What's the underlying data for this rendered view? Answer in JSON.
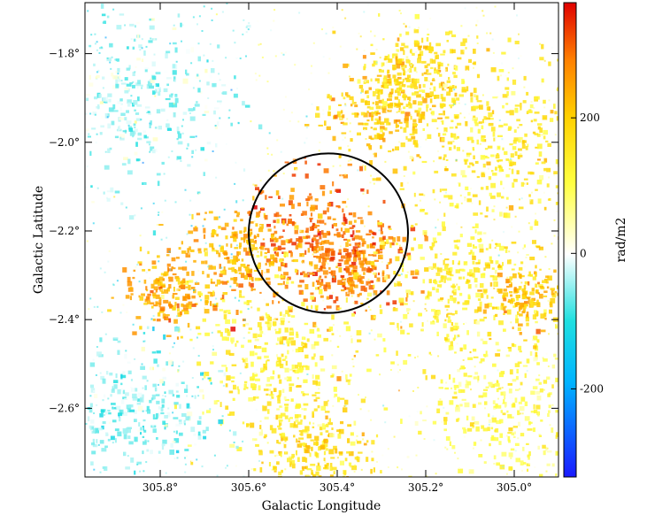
{
  "chart_data": {
    "type": "heatmap",
    "title": "",
    "xlabel": "Galactic Longitude",
    "ylabel": "Galactic Latitude",
    "xlim": [
      305.97,
      304.9
    ],
    "ylim": [
      -2.755,
      -1.685
    ],
    "x_ticks": [
      {
        "value": 305.8,
        "label": "305.8°"
      },
      {
        "value": 305.6,
        "label": "305.6°"
      },
      {
        "value": 305.4,
        "label": "305.4°"
      },
      {
        "value": 305.2,
        "label": "305.2°"
      },
      {
        "value": 305.0,
        "label": "305.0°"
      }
    ],
    "y_ticks": [
      {
        "value": -1.8,
        "label": "−1.8°"
      },
      {
        "value": -2.0,
        "label": "−2.0°"
      },
      {
        "value": -2.2,
        "label": "−2.2°"
      },
      {
        "value": -2.4,
        "label": "−2.4°"
      },
      {
        "value": -2.6,
        "label": "−2.6°"
      }
    ],
    "colorbar": {
      "label": "rad/m2",
      "range": [
        -330,
        370
      ],
      "ticks": [
        {
          "value": 200,
          "label": "200"
        },
        {
          "value": 0,
          "label": "0"
        },
        {
          "value": -200,
          "label": "-200"
        }
      ],
      "colors": [
        "#1a1aff",
        "#00c8e0",
        "#ffffff",
        "#ffff00",
        "#ffa000",
        "#ff3000",
        "#e00000"
      ]
    },
    "regions": [
      {
        "l": 305.45,
        "b": -2.22,
        "rm": 300,
        "spread": 0.085
      },
      {
        "l": 305.36,
        "b": -2.27,
        "rm": 280,
        "spread": 0.06
      },
      {
        "l": 305.62,
        "b": -2.26,
        "rm": 230,
        "spread": 0.07
      },
      {
        "l": 305.78,
        "b": -2.33,
        "rm": 240,
        "spread": 0.05
      },
      {
        "l": 305.3,
        "b": -1.92,
        "rm": 200,
        "spread": 0.07
      },
      {
        "l": 305.22,
        "b": -1.84,
        "rm": 160,
        "spread": 0.06
      },
      {
        "l": 305.05,
        "b": -2.0,
        "rm": 140,
        "spread": 0.1
      },
      {
        "l": 305.15,
        "b": -2.33,
        "rm": 130,
        "spread": 0.09
      },
      {
        "l": 305.45,
        "b": -2.7,
        "rm": 170,
        "spread": 0.07
      },
      {
        "l": 305.55,
        "b": -2.5,
        "rm": 120,
        "spread": 0.1
      },
      {
        "l": 305.0,
        "b": -2.6,
        "rm": 100,
        "spread": 0.1
      },
      {
        "l": 304.97,
        "b": -2.35,
        "rm": 210,
        "spread": 0.05
      },
      {
        "l": 305.85,
        "b": -2.6,
        "rm": -50,
        "spread": 0.08
      },
      {
        "l": 305.85,
        "b": -1.9,
        "rm": -40,
        "spread": 0.1
      }
    ],
    "annotations": [
      {
        "type": "circle",
        "l_center": 305.42,
        "b_center": -2.205,
        "radius_deg": 0.18
      }
    ],
    "grid": false
  }
}
